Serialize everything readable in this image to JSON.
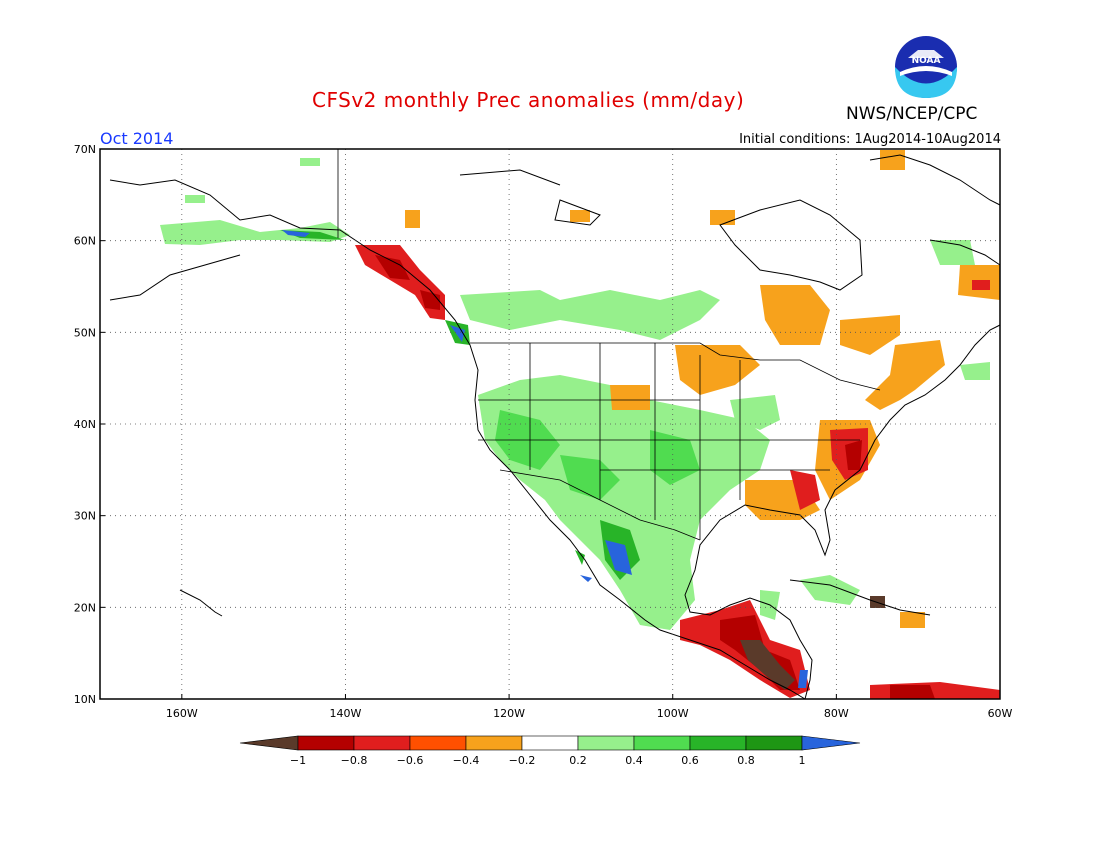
{
  "header": {
    "title": "CFSv2 monthly Prec anomalies (mm/day)",
    "agency": "NWS/NCEP/CPC",
    "logo_text": "NOAA",
    "month": "Oct 2014",
    "initial_conditions": "Initial conditions: 1Aug2014-10Aug2014"
  },
  "map": {
    "lon_range": [
      -170,
      -60
    ],
    "lat_range": [
      10,
      70
    ],
    "lat_ticks": [
      "10N",
      "20N",
      "30N",
      "40N",
      "50N",
      "60N",
      "70N"
    ],
    "lon_ticks": [
      "160W",
      "140W",
      "120W",
      "100W",
      "80W",
      "60W"
    ],
    "grid": "dotted"
  },
  "legend": {
    "labels": [
      "−1",
      "−0.8",
      "−0.6",
      "−0.4",
      "−0.2",
      "0.2",
      "0.4",
      "0.6",
      "0.8",
      "1"
    ],
    "colors": [
      "#5a3a2a",
      "#b40000",
      "#e01e1e",
      "#ff5000",
      "#f7a21c",
      "#ffffff",
      "#96f08c",
      "#50dc50",
      "#28b428",
      "#1e9614",
      "#2864dc"
    ]
  }
}
